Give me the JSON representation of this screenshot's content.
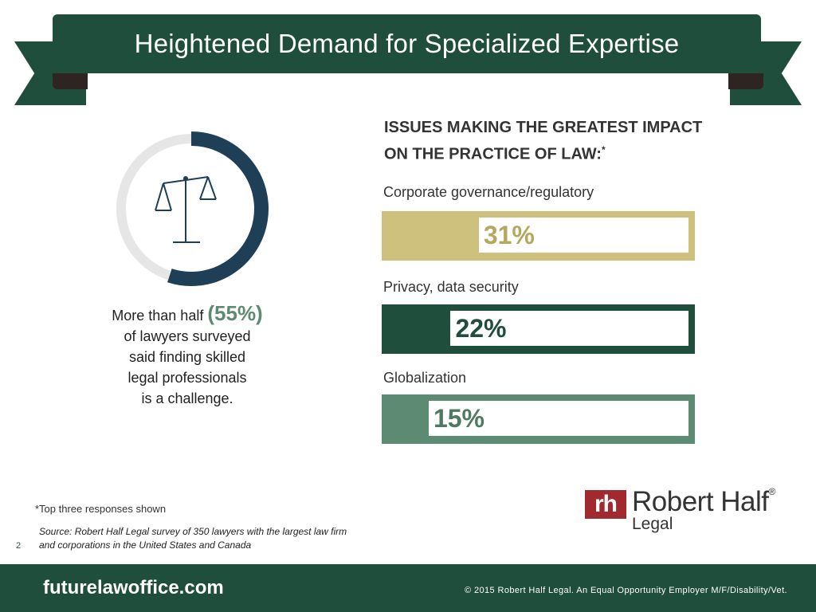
{
  "header": {
    "title": "Heightened Demand for Specialized Expertise"
  },
  "stat": {
    "caption_before": "More than half",
    "percent_label": "(55%)",
    "caption_lines": [
      "of lawyers surveyed",
      "said finding skilled",
      "legal professionals",
      "is a challenge."
    ]
  },
  "chart_data": [
    {
      "type": "pie",
      "values": [
        55,
        45
      ],
      "colors": [
        "#1f3f57",
        "#e6e6e6"
      ]
    },
    {
      "type": "bar",
      "title": "ISSUES MAKING THE GREATEST IMPACT ON THE PRACTICE OF LAW:",
      "title_marker": "*",
      "categories": [
        "Corporate governance/regulatory",
        "Privacy, data security",
        "Globalization"
      ],
      "values": [
        31,
        22,
        15
      ],
      "value_labels": [
        "31%",
        "22%",
        "15%"
      ],
      "colors": [
        "#cdc17d",
        "#1f4e3d",
        "#5d8a72"
      ],
      "value_colors": [
        "#b3a85e",
        "#1f4e3d",
        "#4e7a63"
      ]
    }
  ],
  "footnote": "*Top three responses shown",
  "source": "Source: Robert Half Legal survey of 350 lawyers with the largest law firm and corporations in the United States and Canada",
  "page_number": "2",
  "logo": {
    "mark": "rh",
    "name": "Robert Half",
    "reg": "®",
    "sub": "Legal"
  },
  "footer": {
    "url": "futurelawoffice.com",
    "copyright": "© 2015 Robert Half Legal. An Equal Opportunity Employer M/F/Disability/Vet."
  }
}
